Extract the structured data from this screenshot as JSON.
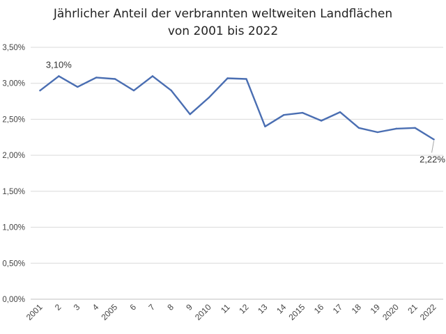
{
  "chart_data": {
    "type": "line",
    "title": [
      "Jährlicher Anteil der verbrannten weltweiten Landflächen",
      "von 2001 bis 2022"
    ],
    "xlabel": "",
    "ylabel": "",
    "categories": [
      "2001",
      "2",
      "3",
      "4",
      "2005",
      "6",
      "7",
      "8",
      "9",
      "2010",
      "11",
      "12",
      "13",
      "14",
      "2015",
      "16",
      "17",
      "18",
      "19",
      "2020",
      "21",
      "2022"
    ],
    "series": [
      {
        "values": [
          2.9,
          3.1,
          2.95,
          3.08,
          3.06,
          2.9,
          3.1,
          2.9,
          2.57,
          2.8,
          3.07,
          3.06,
          2.4,
          2.56,
          2.59,
          2.48,
          2.6,
          2.38,
          2.32,
          2.37,
          2.38,
          2.22
        ],
        "color": "#4a6eb2"
      }
    ],
    "ylim": [
      0,
      3.5
    ],
    "yticks": [
      0,
      0.5,
      1.0,
      1.5,
      2.0,
      2.5,
      3.0,
      3.5
    ],
    "ytick_labels": [
      "0,00%",
      "0,50%",
      "1,00%",
      "1,50%",
      "2,00%",
      "2,50%",
      "3,00%",
      "3,50%"
    ],
    "grid": true,
    "legend": "none",
    "data_labels": [
      {
        "index": 1,
        "text": "3,10%"
      },
      {
        "index": 21,
        "text": "2,22%"
      }
    ]
  }
}
